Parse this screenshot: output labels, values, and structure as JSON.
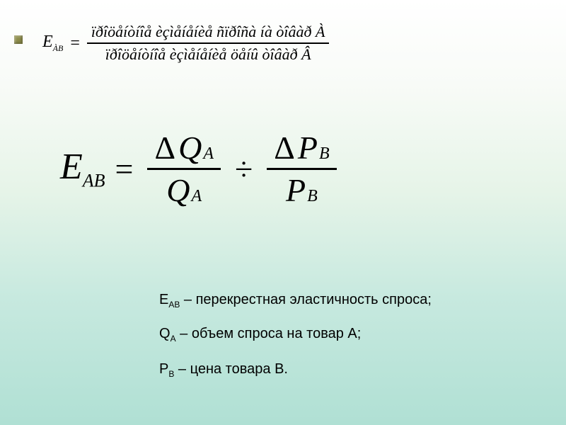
{
  "top_formula": {
    "lhs_symbol": "E",
    "lhs_subscript": "ÀB",
    "numerator": "ïðîöåíòíîå   èçìåíåíèå   ñïðîñà  íà  òîâàð  À",
    "denominator": "ïðîöåíòíîå   èçìåíåíèå   öåíû  òîâàð  Â",
    "title_fontsize": 22,
    "color": "#000000"
  },
  "main_formula": {
    "lhs_symbol": "E",
    "lhs_subscript": "AB",
    "frac1": {
      "num_delta": "Δ",
      "num_var": "Q",
      "num_sub": "A",
      "den_var": "Q",
      "den_sub": "A"
    },
    "operator": "÷",
    "frac2": {
      "num_delta": "Δ",
      "num_var": "P",
      "num_sub": "B",
      "den_var": "P",
      "den_sub": "B"
    },
    "symbol_fontsize": 52,
    "frac_fontsize": 46,
    "color": "#000000"
  },
  "legend": {
    "line1": {
      "term": "E",
      "sub": "AB",
      "desc": " – перекрестная эластичность спроса;"
    },
    "line2": {
      "term": "Q",
      "sub": "A",
      "desc": " – объем спроса на товар A;"
    },
    "line3": {
      "term": "P",
      "sub": "B",
      "desc": " – цена товара B."
    },
    "fontsize": 20,
    "color": "#000000"
  },
  "bullet": {
    "color": "#8c8c4a",
    "size": 12
  },
  "background": {
    "gradient_stops": [
      "#ffffff",
      "#f8fbf7",
      "#e6f4e8",
      "#c7e9df",
      "#b0e0d4"
    ]
  }
}
